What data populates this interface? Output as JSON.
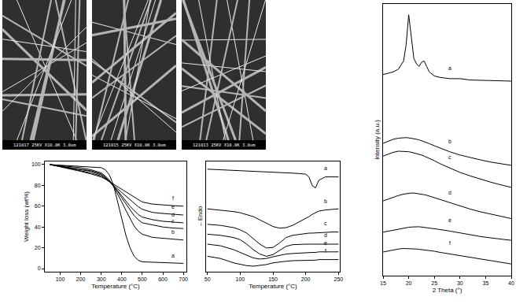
{
  "images": [
    {
      "caption": "121017 25KV X10.0K 3.0um"
    },
    {
      "caption": "121015 25KV X10.0K 3.0um"
    },
    {
      "caption": "121013 25KV X10.0K 3.0um"
    }
  ],
  "chart_data": [
    {
      "type": "line",
      "x_label": "Temperature (°C)",
      "y_label": "Weight loss (wt%)",
      "x": [
        50,
        100,
        150,
        200,
        250,
        300,
        320,
        340,
        360,
        380,
        400,
        420,
        440,
        460,
        480,
        500,
        550,
        600,
        650,
        700
      ],
      "series": [
        {
          "name": "a",
          "color": "#000000",
          "values": [
            100,
            99.5,
            99,
            98.5,
            98,
            97,
            95,
            90,
            80,
            65,
            48,
            32,
            20,
            12,
            8,
            6.5,
            6,
            5.5,
            5.5,
            5
          ]
        },
        {
          "name": "b",
          "color": "#000000",
          "values": [
            100,
            99,
            98,
            97,
            95,
            92,
            89,
            85,
            79,
            72,
            64,
            56,
            48,
            41,
            36,
            33,
            30,
            29,
            28,
            27.5
          ]
        },
        {
          "name": "c",
          "color": "#000000",
          "values": [
            100,
            98.5,
            97,
            95.5,
            94,
            91,
            88,
            84,
            79,
            74,
            68,
            62,
            56,
            51,
            47,
            44,
            42,
            40,
            39,
            38.5
          ]
        },
        {
          "name": "d",
          "color": "#000000",
          "values": [
            100,
            98.5,
            97,
            95.5,
            93.5,
            90,
            87,
            84,
            79.5,
            75,
            70,
            65,
            60,
            56,
            52,
            49.5,
            47,
            45.5,
            44.5,
            44
          ]
        },
        {
          "name": "e",
          "color": "#000000",
          "values": [
            100,
            98,
            96,
            94,
            92,
            89,
            86.5,
            83.5,
            80,
            76.5,
            73,
            69.5,
            66,
            62.5,
            59.5,
            57,
            54,
            53,
            52,
            51.5
          ]
        },
        {
          "name": "f",
          "color": "#000000",
          "values": [
            100,
            98,
            96,
            93.5,
            91,
            88,
            86,
            83.5,
            81,
            78.5,
            76,
            73.5,
            71,
            68.5,
            66,
            64,
            62,
            61,
            60.5,
            60
          ]
        }
      ],
      "xlim": [
        25,
        715
      ],
      "xticks": [
        100,
        200,
        300,
        400,
        500,
        600,
        700
      ],
      "ylim": [
        -3,
        103
      ],
      "yticks": [
        0,
        20,
        40,
        60,
        80,
        100
      ],
      "grid": false
    },
    {
      "type": "line",
      "x_label": "Temperature (°C)",
      "y_label": "←Endo",
      "x": [
        50,
        70,
        90,
        100,
        110,
        120,
        130,
        140,
        150,
        160,
        170,
        180,
        190,
        200,
        205,
        210,
        215,
        220,
        230,
        240,
        250
      ],
      "series": [
        {
          "name": "a",
          "color": "#000000",
          "values": [
            93,
            92.5,
            92,
            91.8,
            91.5,
            91.2,
            91,
            90.7,
            90.4,
            90,
            89.7,
            89.4,
            89,
            88.5,
            86,
            78,
            76,
            83,
            86,
            86,
            86
          ]
        },
        {
          "name": "b",
          "color": "#000000",
          "values": [
            57,
            56,
            54.5,
            53.5,
            52,
            50,
            47,
            44,
            41,
            39.5,
            40,
            42,
            45,
            48,
            50,
            52,
            53.5,
            55,
            56,
            56.5,
            57
          ]
        },
        {
          "name": "c",
          "color": "#000000",
          "values": [
            43,
            42,
            40,
            38,
            35,
            30,
            25,
            21.5,
            22,
            26,
            31,
            33,
            34,
            34.5,
            35,
            35,
            35.2,
            35.5,
            35.8,
            36,
            36
          ]
        },
        {
          "name": "d",
          "color": "#000000",
          "values": [
            34,
            33,
            31,
            29,
            25,
            20,
            16,
            14,
            15.5,
            19,
            23,
            24.5,
            25,
            25,
            25,
            25,
            25,
            25,
            25,
            25,
            25
          ]
        },
        {
          "name": "e",
          "color": "#000000",
          "values": [
            25,
            23.5,
            20,
            17.5,
            15,
            12.5,
            11.5,
            12,
            13.5,
            15,
            16,
            16.5,
            17,
            17,
            17.5,
            17.5,
            17.5,
            18,
            18,
            18,
            18
          ]
        },
        {
          "name": "f",
          "color": "#000000",
          "values": [
            14,
            12,
            8,
            6.5,
            5.5,
            5,
            5.5,
            6.5,
            8,
            9,
            9.5,
            10,
            10,
            10.5,
            10.5,
            10.5,
            10.5,
            11,
            11,
            11,
            11
          ]
        }
      ],
      "xlim": [
        48,
        252
      ],
      "xticks": [
        50,
        100,
        150,
        200,
        250
      ],
      "ylim": [
        0,
        100
      ],
      "tick_labels": "x",
      "grid": false
    },
    {
      "type": "line",
      "x_label": "2 Theta (°)",
      "y_label": "Intensity (a.u.)",
      "x": [
        15,
        16,
        17,
        18,
        19,
        19.5,
        20,
        20.5,
        21,
        21.5,
        22,
        22.5,
        23,
        23.5,
        24,
        25,
        26,
        28,
        30,
        32,
        34,
        36,
        38,
        40
      ],
      "series": [
        {
          "name": "a",
          "color": "#000000",
          "values": [
            74,
            74.5,
            75,
            76,
            79,
            85,
            96,
            88,
            80,
            78,
            77,
            78.5,
            79,
            77,
            75,
            73.5,
            73,
            72.5,
            72.5,
            72,
            72,
            71.8,
            71.7,
            71.6
          ]
        },
        {
          "name": "b",
          "color": "#000000",
          "values": [
            48.7,
            49.5,
            50.2,
            50.6,
            50.8,
            50.8,
            50.7,
            50.6,
            50.4,
            50.2,
            50,
            49.7,
            49.4,
            49,
            48.6,
            47.8,
            47,
            45.6,
            44.4,
            43.4,
            42.6,
            41.8,
            41.2,
            40.6
          ]
        },
        {
          "name": "c",
          "color": "#000000",
          "values": [
            44,
            44.8,
            45.4,
            45.8,
            45.8,
            45.7,
            45.6,
            45.4,
            45.2,
            45,
            44.7,
            44.4,
            44,
            43.6,
            43.2,
            42.3,
            41.3,
            39.6,
            38,
            36.7,
            35.5,
            34.4,
            33.4,
            32.5
          ]
        },
        {
          "name": "d",
          "color": "#000000",
          "values": [
            27.5,
            28.2,
            28.9,
            29.5,
            30,
            30.2,
            30.3,
            30.4,
            30.4,
            30.3,
            30.2,
            30,
            29.8,
            29.6,
            29.3,
            28.7,
            28,
            26.8,
            25.6,
            24.5,
            23.5,
            22.6,
            21.8,
            21
          ]
        },
        {
          "name": "e",
          "color": "#000000",
          "values": [
            16,
            16.4,
            16.8,
            17.2,
            17.5,
            17.7,
            17.8,
            17.9,
            18,
            18,
            18,
            17.9,
            17.8,
            17.7,
            17.6,
            17.3,
            17,
            16.4,
            15.7,
            15,
            14.4,
            13.9,
            13.4,
            13
          ]
        },
        {
          "name": "f",
          "color": "#000000",
          "values": [
            8.7,
            9.1,
            9.5,
            9.8,
            10,
            10,
            10,
            10,
            9.9,
            9.8,
            9.7,
            9.6,
            9.5,
            9.4,
            9.3,
            9,
            8.6,
            8,
            7.3,
            6.6,
            6,
            5.4,
            4.8,
            4.3
          ]
        }
      ],
      "xlim": [
        15,
        40
      ],
      "xticks": [
        15,
        20,
        25,
        30,
        35,
        40
      ],
      "ylim": [
        0,
        100
      ],
      "tick_labels": "x",
      "grid": false
    }
  ]
}
